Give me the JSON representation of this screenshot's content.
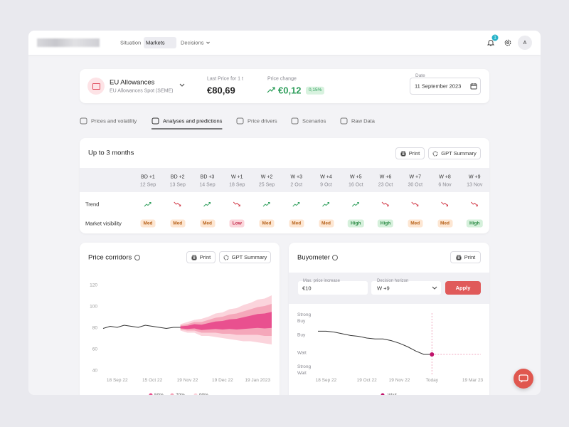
{
  "nav": {
    "items": [
      "Situation",
      "Markets",
      "Decisions"
    ],
    "active": 1,
    "notifications": 1,
    "avatar": "A"
  },
  "asset": {
    "name": "EU Allowances",
    "market": "EU Allowances Spot (SEME)"
  },
  "last_price": {
    "label": "Last Price for 1 t",
    "value": "€80,69"
  },
  "price_change": {
    "label": "Price change",
    "value": "€0,12",
    "percent": "0,15%"
  },
  "date": {
    "label": "Date",
    "value": "11 September 2023"
  },
  "tabs": {
    "items": [
      "Prices and volatility",
      "Analyses and predictions",
      "Price drivers",
      "Scenarios",
      "Raw Data"
    ],
    "active": 1
  },
  "outlook": {
    "title": "Up to 3 months",
    "print": "Print",
    "gpt": "GPT Summary",
    "horizons": [
      "BD +1",
      "BD +2",
      "BD +3",
      "W +1",
      "W +2",
      "W +3",
      "W +4",
      "W +5",
      "W +6",
      "W +7",
      "W +8",
      "W +9"
    ],
    "dates": [
      "12 Sep",
      "13 Sep",
      "14 Sep",
      "18 Sep",
      "25 Sep",
      "2 Oct",
      "9 Oct",
      "16 Oct",
      "23 Oct",
      "30 Oct",
      "6 Nov",
      "13 Nov"
    ],
    "trend_label": "Trend",
    "trend": [
      "up",
      "down",
      "up",
      "down",
      "up",
      "up",
      "up",
      "up",
      "down",
      "down",
      "down",
      "down"
    ],
    "trend_colors": {
      "up": "#2e9e5b",
      "down": "#d23c4a"
    },
    "visibility_label": "Market visibility",
    "visibility": [
      "Med",
      "Med",
      "Med",
      "Low",
      "Med",
      "Med",
      "Med",
      "High",
      "High",
      "Med",
      "Med",
      "High"
    ],
    "visibility_styles": {
      "Low": {
        "bg": "#fbd6db",
        "fg": "#c42a4a"
      },
      "Med": {
        "bg": "#fde6d2",
        "fg": "#b8641d"
      },
      "High": {
        "bg": "#d5f0db",
        "fg": "#2b8a44"
      }
    }
  },
  "chart_data": [
    {
      "type": "fan",
      "title": "Price corridors",
      "print": "Print",
      "gpt": "GPT Summary",
      "categories": [
        null,
        null,
        "18 Sep 22",
        null,
        null,
        null,
        null,
        "15 Oct 22",
        null,
        null,
        null,
        null,
        "19 Nov 22",
        null,
        null,
        null,
        null,
        "19 Dec 22",
        null,
        null,
        null,
        null,
        "19 Jan 2023",
        null,
        null
      ],
      "ylim": [
        40,
        120
      ],
      "yticks": [
        40,
        60,
        80,
        100,
        120
      ],
      "line": {
        "color": "#333333",
        "values": [
          79,
          81,
          80,
          82,
          81,
          80,
          82,
          81,
          80,
          79,
          80,
          80,
          null,
          null,
          null,
          null,
          null,
          null,
          null,
          null,
          null,
          null,
          null,
          null,
          null
        ]
      },
      "bands": [
        {
          "name": "50%",
          "color": "#e9508f",
          "low": [
            null,
            null,
            null,
            null,
            null,
            null,
            null,
            null,
            null,
            null,
            null,
            79,
            78.5,
            79,
            77.5,
            78,
            78.5,
            78,
            78.5,
            78,
            78.5,
            79,
            79.5,
            79,
            79.5
          ],
          "high": [
            null,
            null,
            null,
            null,
            null,
            null,
            null,
            null,
            null,
            null,
            null,
            81,
            81.5,
            83,
            82.5,
            84,
            85.5,
            86,
            87.5,
            88,
            89.5,
            91,
            92.5,
            93,
            94.5
          ]
        },
        {
          "name": "70%",
          "color": "#f5a7ba",
          "low": [
            null,
            null,
            null,
            null,
            null,
            null,
            null,
            null,
            null,
            null,
            null,
            78,
            77,
            77,
            75,
            75,
            75,
            74,
            74,
            73,
            73,
            73,
            73,
            72,
            72
          ],
          "high": [
            null,
            null,
            null,
            null,
            null,
            null,
            null,
            null,
            null,
            null,
            null,
            82,
            83,
            85,
            85,
            87,
            89,
            90,
            92,
            93,
            95,
            97,
            99,
            100,
            102
          ]
        },
        {
          "name": "90%",
          "color": "#fbd4dc",
          "low": [
            null,
            null,
            null,
            null,
            null,
            null,
            null,
            null,
            null,
            null,
            null,
            77,
            75,
            75,
            72,
            72,
            71,
            70,
            69,
            68,
            67,
            67,
            66,
            65,
            64
          ],
          "high": [
            null,
            null,
            null,
            null,
            null,
            null,
            null,
            null,
            null,
            null,
            null,
            83,
            85,
            87,
            88,
            90,
            93,
            94,
            97,
            98,
            101,
            103,
            106,
            107,
            110
          ]
        }
      ]
    },
    {
      "type": "line",
      "title": "Buyometer",
      "print": "Print",
      "controls": {
        "max_label": "Max. price increase",
        "max_value": "€10",
        "horizon_label": "Decision horizon",
        "horizon_value": "W +9",
        "apply": "Apply"
      },
      "categories": [
        null,
        "18 Sep 22",
        null,
        null,
        null,
        null,
        "19 Oct 22",
        null,
        null,
        null,
        "19 Nov 22",
        null,
        null,
        null,
        "Today",
        null,
        null,
        null,
        null,
        "19 Mar 23",
        null
      ],
      "ylim": [
        -0.3,
        3.3
      ],
      "yticks": [
        {
          "value": 3,
          "label": "Strong Buy"
        },
        {
          "value": 2,
          "label": "Buy"
        },
        {
          "value": 1,
          "label": "Wait"
        },
        {
          "value": 0,
          "label": "Strong Wait"
        }
      ],
      "series": [
        {
          "name": "Wait",
          "color": "#333333",
          "marker_color": "#c0136b",
          "values": [
            2.25,
            2.25,
            2.2,
            2.1,
            2.0,
            1.95,
            1.85,
            1.8,
            1.8,
            1.7,
            1.55,
            1.35,
            1.1,
            0.9,
            0.9,
            null,
            null,
            null,
            null,
            null,
            null
          ]
        }
      ]
    }
  ]
}
